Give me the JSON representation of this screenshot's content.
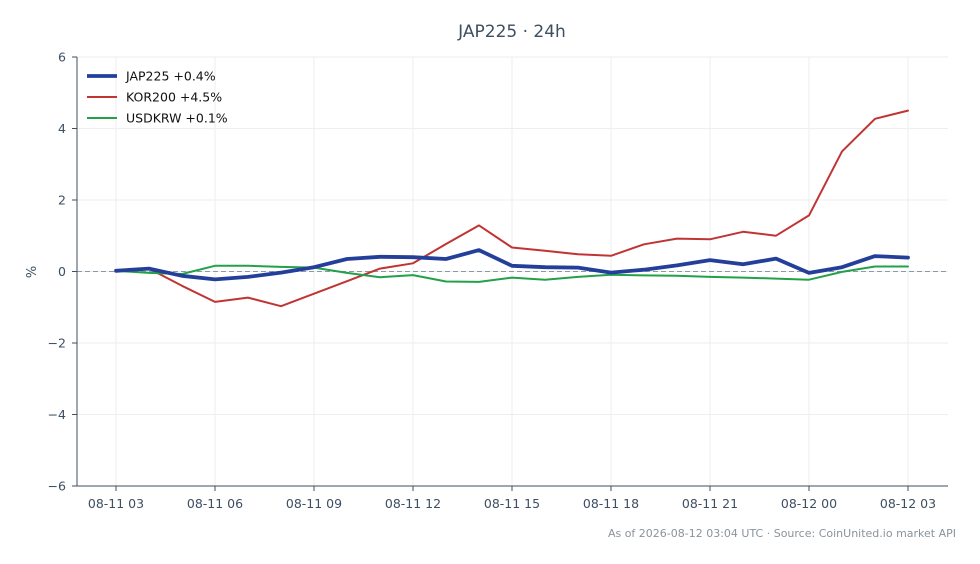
{
  "chart_data": {
    "type": "line",
    "title": "JAP225 · 24h",
    "xlabel": "",
    "ylabel": "%",
    "ylim": [
      -6,
      6
    ],
    "yticks": [
      -6,
      -4,
      -2,
      0,
      2,
      4,
      6
    ],
    "ytick_labels": [
      "−6",
      "−4",
      "−2",
      "0",
      "2",
      "4",
      "6"
    ],
    "x": [
      "08-11 03",
      "08-11 04",
      "08-11 05",
      "08-11 06",
      "08-11 07",
      "08-11 08",
      "08-11 09",
      "08-11 10",
      "08-11 11",
      "08-11 12",
      "08-11 13",
      "08-11 14",
      "08-11 15",
      "08-11 16",
      "08-11 17",
      "08-11 18",
      "08-11 19",
      "08-11 20",
      "08-11 21",
      "08-11 22",
      "08-11 23",
      "08-12 00",
      "08-12 01",
      "08-12 02",
      "08-12 03"
    ],
    "xtick_labels": [
      "08-11 03",
      "08-11 06",
      "08-11 09",
      "08-11 12",
      "08-11 15",
      "08-11 18",
      "08-11 21",
      "08-12 00",
      "08-12 03"
    ],
    "grid": true,
    "zero_line": true,
    "legend_position": "top-left",
    "series": [
      {
        "name": "JAP225 +0.4%",
        "color": "#233f9a",
        "emphasis": true,
        "values": [
          0.02,
          0.08,
          -0.12,
          -0.22,
          -0.15,
          -0.03,
          0.12,
          0.35,
          0.41,
          0.4,
          0.35,
          0.6,
          0.16,
          0.12,
          0.11,
          -0.03,
          0.05,
          0.17,
          0.32,
          0.2,
          0.36,
          -0.04,
          0.12,
          0.43,
          0.39
        ]
      },
      {
        "name": "KOR200 +4.5%",
        "color": "#c13434",
        "emphasis": false,
        "values": [
          0.0,
          0.08,
          -0.4,
          -0.85,
          -0.73,
          -0.97,
          -0.62,
          -0.27,
          0.08,
          0.23,
          0.77,
          1.29,
          0.67,
          0.58,
          0.48,
          0.44,
          0.76,
          0.92,
          0.9,
          1.11,
          1.0,
          1.57,
          3.36,
          4.27,
          4.5
        ]
      },
      {
        "name": "USDKRW +0.1%",
        "color": "#22a04a",
        "emphasis": false,
        "values": [
          0.02,
          -0.04,
          -0.07,
          0.16,
          0.16,
          0.13,
          0.11,
          -0.04,
          -0.16,
          -0.1,
          -0.28,
          -0.29,
          -0.17,
          -0.23,
          -0.15,
          -0.09,
          -0.11,
          -0.12,
          -0.15,
          -0.17,
          -0.2,
          -0.23,
          -0.01,
          0.14,
          0.14
        ]
      }
    ]
  },
  "footer": "As of 2026-08-12 03:04 UTC · Source: CoinUnited.io market API"
}
